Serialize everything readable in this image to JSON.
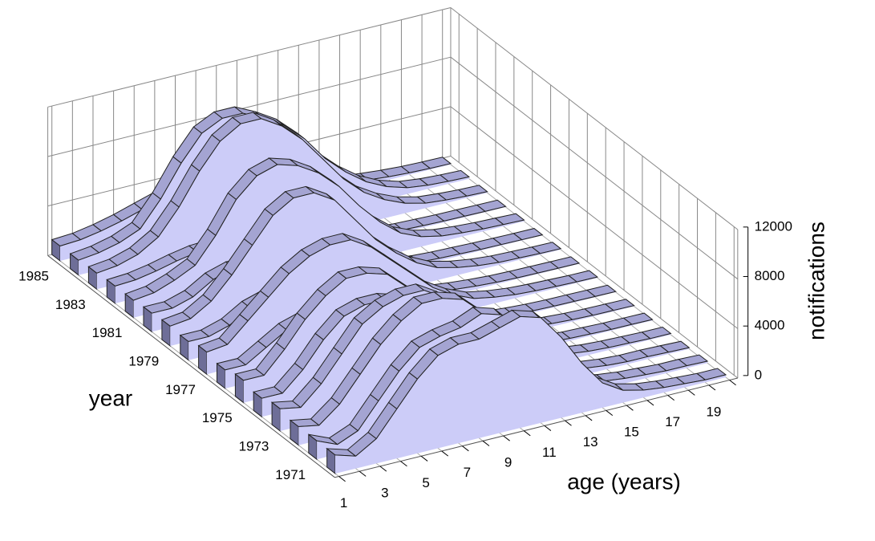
{
  "chart_data": {
    "type": "ribbon3d",
    "x_label": "age (years)",
    "y_label": "year",
    "z_label": "notifications",
    "categories": [
      "1",
      null,
      "3",
      null,
      "5",
      null,
      "7",
      null,
      "9",
      null,
      "11",
      null,
      "13",
      null,
      "15",
      null,
      "17",
      null,
      "19",
      null
    ],
    "zlim": [
      0,
      12000
    ],
    "zticks": [
      0,
      4000,
      8000,
      12000
    ],
    "color": "#ccccf8",
    "top_color": "#a4a4d2",
    "side_color": "#6e6e98",
    "series": [
      {
        "name": null,
        "values": [
          1500,
          1000,
          2000,
          4000,
          6000,
          7500,
          8000,
          8000,
          8500,
          9000,
          8500,
          6500,
          4000,
          2000,
          1000,
          600,
          400,
          300,
          200,
          200
        ]
      },
      {
        "name": "1971",
        "values": [
          1500,
          800,
          1500,
          3500,
          5500,
          7000,
          7500,
          7800,
          8500,
          8000,
          6000,
          3500,
          2000,
          1000,
          600,
          400,
          300,
          200,
          200,
          150
        ]
      },
      {
        "name": null,
        "values": [
          1500,
          1200,
          2500,
          4500,
          6500,
          8000,
          9000,
          9000,
          8500,
          7000,
          5000,
          3000,
          1500,
          800,
          500,
          300,
          200,
          200,
          150,
          100
        ]
      },
      {
        "name": "1973",
        "values": [
          1800,
          1500,
          3000,
          5000,
          7000,
          8000,
          8500,
          8500,
          7500,
          6000,
          4000,
          2500,
          1500,
          800,
          500,
          300,
          200,
          150,
          100,
          100
        ]
      },
      {
        "name": null,
        "values": [
          1500,
          1500,
          3000,
          5000,
          6500,
          7000,
          7000,
          6500,
          5500,
          4000,
          2500,
          1500,
          800,
          500,
          300,
          200,
          150,
          100,
          100,
          80
        ]
      },
      {
        "name": "1975",
        "values": [
          1800,
          1800,
          3500,
          5500,
          7000,
          8000,
          8000,
          7500,
          6000,
          4500,
          3000,
          1800,
          1000,
          600,
          400,
          250,
          150,
          100,
          80,
          60
        ]
      },
      {
        "name": null,
        "values": [
          1500,
          1500,
          2500,
          3500,
          4000,
          4200,
          4000,
          3500,
          3000,
          2200,
          1500,
          1000,
          600,
          400,
          250,
          150,
          100,
          80,
          60,
          50
        ]
      },
      {
        "name": "1977",
        "values": [
          1800,
          2000,
          3500,
          5000,
          6500,
          7500,
          8000,
          8000,
          7000,
          5500,
          4000,
          2500,
          1500,
          800,
          500,
          300,
          200,
          150,
          100,
          80
        ]
      },
      {
        "name": null,
        "values": [
          1500,
          1500,
          2000,
          3000,
          3500,
          3800,
          3600,
          3200,
          2600,
          2000,
          1500,
          1000,
          600,
          400,
          250,
          150,
          100,
          80,
          60,
          50
        ]
      },
      {
        "name": "1979",
        "values": [
          1600,
          1800,
          2800,
          4500,
          6500,
          8500,
          9500,
          9500,
          8500,
          6500,
          4500,
          3000,
          1800,
          1000,
          600,
          350,
          200,
          150,
          100,
          80
        ]
      },
      {
        "name": null,
        "values": [
          1500,
          1500,
          2000,
          3000,
          3500,
          3500,
          3200,
          2800,
          2200,
          1700,
          1200,
          800,
          500,
          300,
          200,
          150,
          100,
          80,
          60,
          50
        ]
      },
      {
        "name": "1981",
        "values": [
          1400,
          1600,
          2200,
          3000,
          5000,
          7500,
          9000,
          9500,
          9000,
          8000,
          6500,
          4500,
          2800,
          1500,
          800,
          450,
          300,
          200,
          150,
          100
        ]
      },
      {
        "name": null,
        "values": [
          1400,
          1500,
          1800,
          2200,
          2500,
          2600,
          2500,
          2200,
          1800,
          1400,
          1000,
          700,
          500,
          300,
          200,
          150,
          100,
          80,
          60,
          50
        ]
      },
      {
        "name": "1983",
        "values": [
          1300,
          1500,
          2000,
          3000,
          5000,
          7500,
          9500,
          10500,
          10500,
          9500,
          8000,
          6000,
          4000,
          2500,
          1500,
          800,
          400,
          250,
          150,
          100
        ]
      },
      {
        "name": null,
        "values": [
          1200,
          1400,
          1800,
          2500,
          4500,
          7000,
          9000,
          9800,
          9800,
          9000,
          8000,
          6500,
          4500,
          3000,
          1800,
          1000,
          500,
          300,
          200,
          150
        ]
      },
      {
        "name": "1985",
        "values": [
          1200,
          1300,
          1600,
          2000,
          2500,
          3000,
          3200,
          3200,
          3000,
          2700,
          2300,
          1800,
          1300,
          900,
          600,
          400,
          250,
          150,
          100,
          80
        ]
      }
    ]
  }
}
